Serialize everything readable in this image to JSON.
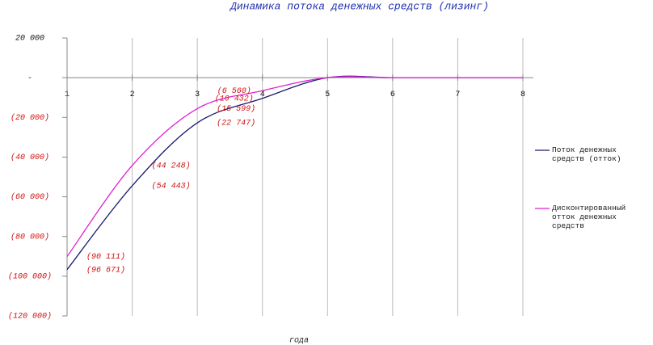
{
  "chart_data": {
    "type": "line",
    "title": "Динамика потока денежных средств (лизинг)",
    "x_label": "года",
    "x": [
      1,
      2,
      3,
      4,
      5,
      6,
      7,
      8
    ],
    "xlim": [
      1,
      8
    ],
    "xticks": [
      1,
      2,
      3,
      4,
      5,
      6,
      7,
      8
    ],
    "ylim": [
      -120000,
      20000
    ],
    "yticks": [
      {
        "value": 20000,
        "label": "20 000"
      },
      {
        "value": 0,
        "label": "-"
      },
      {
        "value": -20000,
        "label": "(20 000)"
      },
      {
        "value": -40000,
        "label": "(40 000)"
      },
      {
        "value": -60000,
        "label": "(60 000)"
      },
      {
        "value": -80000,
        "label": "(80 000)"
      },
      {
        "value": -100000,
        "label": "(100 000)"
      },
      {
        "value": -120000,
        "label": "(120 000)"
      }
    ],
    "grid": true,
    "legend": "right",
    "series": [
      {
        "name": "Поток денежных средств (отток)",
        "color": "#1a1a6e",
        "values": [
          -96671,
          -54443,
          -22747,
          -10432,
          0,
          0,
          0,
          0
        ],
        "value_labels": [
          "(96 671)",
          "(54 443)",
          "(22 747)",
          "(10 432)",
          null,
          null,
          null,
          null
        ]
      },
      {
        "name": "Дисконтированный отток денежных средств",
        "color": "#e020d0",
        "values": [
          -90111,
          -44248,
          -15599,
          -6560,
          0,
          0,
          0,
          0
        ],
        "value_labels": [
          "(90 111)",
          "(44 248)",
          "(15 599)",
          "(6 560)",
          null,
          null,
          null,
          null
        ]
      }
    ]
  }
}
